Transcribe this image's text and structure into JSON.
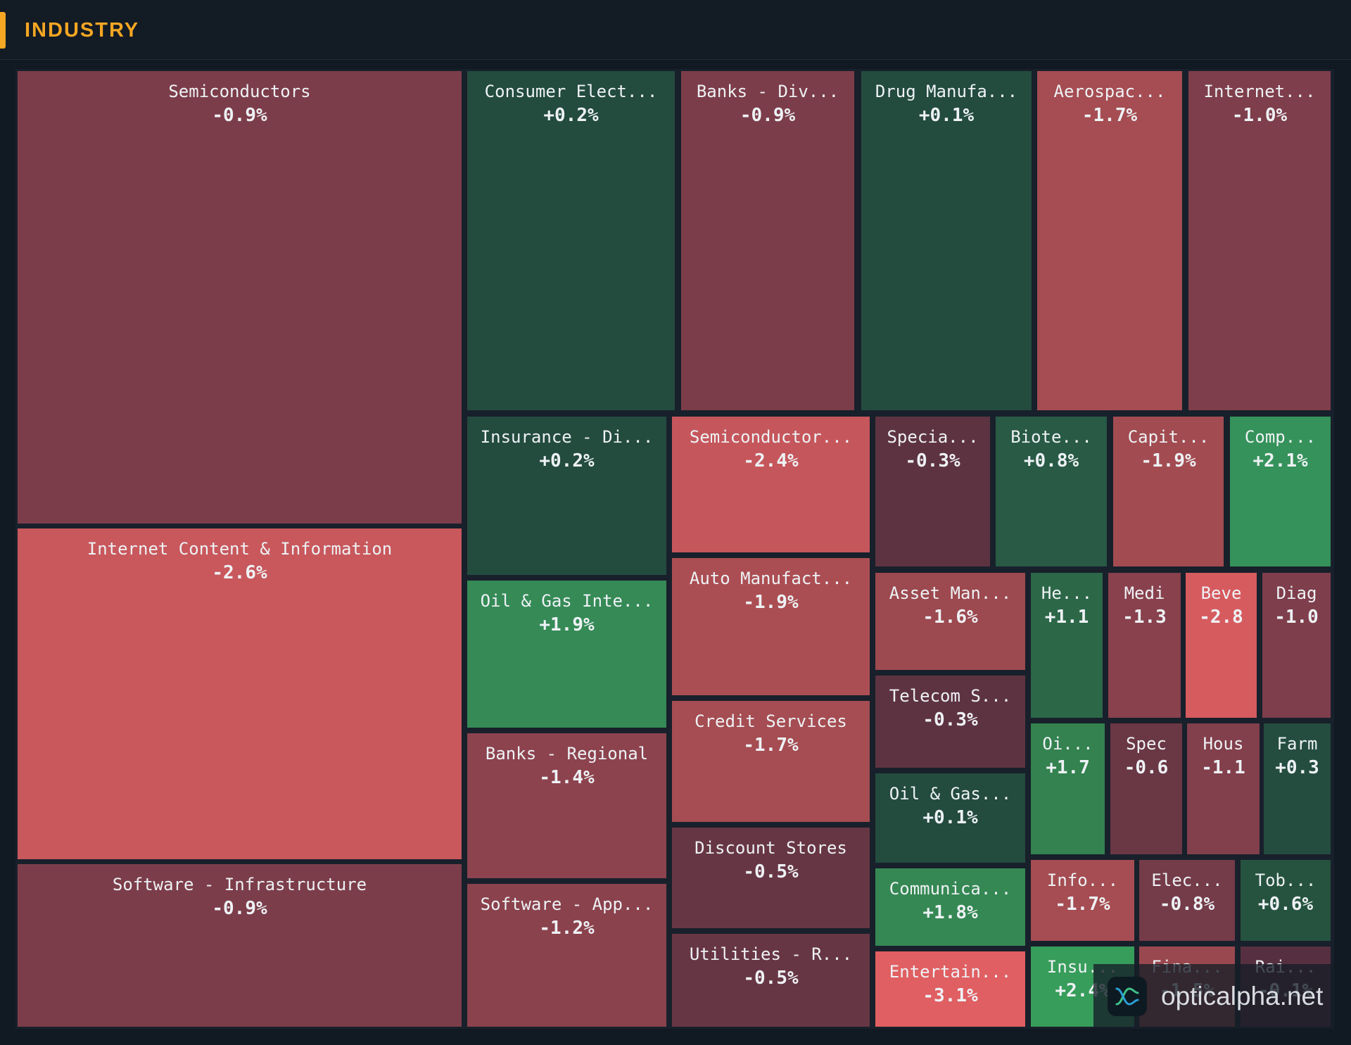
{
  "header": {
    "title": "INDUSTRY",
    "accent_color": "#f5a623"
  },
  "watermark": {
    "text": "opticalpha.net",
    "icon": "chart-logo-icon"
  },
  "chart_data": {
    "type": "treemap",
    "title": "INDUSTRY",
    "color_scale": {
      "negative": "#e05f62",
      "neutral": "#5a3040",
      "positive": "#39a35a"
    },
    "tiles": [
      {
        "label": "Semiconductors",
        "value": "-0.9%",
        "change": -0.9,
        "color": "#7c3d4a"
      },
      {
        "label": "Internet Content & Information",
        "value": "-2.6%",
        "change": -2.6,
        "color": "#c8585c"
      },
      {
        "label": "Software - Infrastructure",
        "value": "-0.9%",
        "change": -0.9,
        "color": "#7c3d4a"
      },
      {
        "label": "Consumer Elect...",
        "value": "+0.2%",
        "change": 0.2,
        "color": "#234b3e"
      },
      {
        "label": "Banks - Div...",
        "value": "-0.9%",
        "change": -0.9,
        "color": "#7c3d4a"
      },
      {
        "label": "Drug Manufa...",
        "value": "+0.1%",
        "change": 0.1,
        "color": "#234b3e"
      },
      {
        "label": "Aerospac...",
        "value": "-1.7%",
        "change": -1.7,
        "color": "#a54d52"
      },
      {
        "label": "Internet...",
        "value": "-1.0%",
        "change": -1.0,
        "color": "#7e3e4b"
      },
      {
        "label": "Insurance - Di...",
        "value": "+0.2%",
        "change": 0.2,
        "color": "#234b3e"
      },
      {
        "label": "Oil & Gas Inte...",
        "value": "+1.9%",
        "change": 1.9,
        "color": "#358a56"
      },
      {
        "label": "Banks - Regional",
        "value": "-1.4%",
        "change": -1.4,
        "color": "#8c434e"
      },
      {
        "label": "Software - App...",
        "value": "-1.2%",
        "change": -1.2,
        "color": "#8a424d"
      },
      {
        "label": "Semiconductor...",
        "value": "-2.4%",
        "change": -2.4,
        "color": "#c5575c"
      },
      {
        "label": "Auto Manufact...",
        "value": "-1.9%",
        "change": -1.9,
        "color": "#ab4e53"
      },
      {
        "label": "Credit Services",
        "value": "-1.7%",
        "change": -1.7,
        "color": "#a54d52"
      },
      {
        "label": "Discount Stores",
        "value": "-0.5%",
        "change": -0.5,
        "color": "#673644"
      },
      {
        "label": "Utilities - R...",
        "value": "-0.5%",
        "change": -0.5,
        "color": "#673644"
      },
      {
        "label": "Specia...",
        "value": "-0.3%",
        "change": -0.3,
        "color": "#5e3341"
      },
      {
        "label": "Biote...",
        "value": "+0.8%",
        "change": 0.8,
        "color": "#285a45"
      },
      {
        "label": "Capit...",
        "value": "-1.9%",
        "change": -1.9,
        "color": "#a24c51"
      },
      {
        "label": "Comp...",
        "value": "+2.1%",
        "change": 2.1,
        "color": "#35925a"
      },
      {
        "label": "Asset Man...",
        "value": "-1.6%",
        "change": -1.6,
        "color": "#9c494f"
      },
      {
        "label": "Telecom S...",
        "value": "-0.3%",
        "change": -0.3,
        "color": "#5e3341"
      },
      {
        "label": "Oil & Gas...",
        "value": "+0.1%",
        "change": 0.1,
        "color": "#234b3e"
      },
      {
        "label": "Communica...",
        "value": "+1.8%",
        "change": 1.8,
        "color": "#358853"
      },
      {
        "label": "Entertain...",
        "value": "-3.1%",
        "change": -3.1,
        "color": "#e05f62"
      },
      {
        "label": "He...",
        "value": "+1.1",
        "change": 1.1,
        "color": "#2c6748"
      },
      {
        "label": "Medi",
        "value": "-1.3",
        "change": -1.3,
        "color": "#88414d"
      },
      {
        "label": "Beve",
        "value": "-2.8",
        "change": -2.8,
        "color": "#d65b5f"
      },
      {
        "label": "Diag",
        "value": "-1.0",
        "change": -1.0,
        "color": "#7e3e4b"
      },
      {
        "label": "Oi...",
        "value": "+1.7",
        "change": 1.7,
        "color": "#33824f"
      },
      {
        "label": "Spec",
        "value": "-0.6",
        "change": -0.6,
        "color": "#6a3745"
      },
      {
        "label": "Hous",
        "value": "-1.1",
        "change": -1.1,
        "color": "#823f4c"
      },
      {
        "label": "Farm",
        "value": "+0.3",
        "change": 0.3,
        "color": "#244d3f"
      },
      {
        "label": "Info...",
        "value": "-1.7%",
        "change": -1.7,
        "color": "#a54d52"
      },
      {
        "label": "Elec...",
        "value": "-0.8%",
        "change": -0.8,
        "color": "#743b49"
      },
      {
        "label": "Tob...",
        "value": "+0.6%",
        "change": 0.6,
        "color": "#26533f"
      },
      {
        "label": "Insu...",
        "value": "+2.4%",
        "change": 2.4,
        "color": "#379d5a"
      },
      {
        "label": "Fina...",
        "value": "-1.5%",
        "change": -1.5,
        "color": "#9a484f"
      },
      {
        "label": "Rai...",
        "value": "-0.1%",
        "change": -0.1,
        "color": "#563041"
      }
    ]
  }
}
